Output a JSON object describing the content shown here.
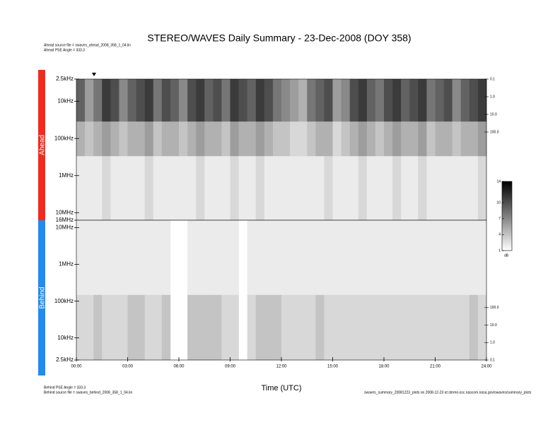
{
  "header": {
    "title": "STEREO/WAVES Daily Summary - 23-Dec-2008 (DOY 358)",
    "lines": [
      "Ahead source file = swaves_ahead_2008_358_1_04.lin",
      "Ahead PSE Angle = 333.3"
    ]
  },
  "footer": {
    "left": [
      "Behind PSE Angle = 333.3",
      "Behind source file = swaves_behind_2008_358_1_04.lin"
    ],
    "right": "swaves_summary_20081223_plots on 2008-12-23 at stereo-ssc.nascom.nasa.gov/swaves/summary_plots"
  },
  "colorbar": {
    "lim": [
      1,
      14
    ],
    "ticks": [
      1,
      4,
      7,
      10,
      14
    ],
    "label": "dB"
  },
  "chart_data": [
    {
      "type": "heatmap",
      "label": "Ahead",
      "color": "#f42a1e",
      "xlim": [
        0,
        24
      ],
      "yscale": "log",
      "ylim": [
        16000000,
        2500
      ],
      "yticks": [
        {
          "value": 2500,
          "label": "2.5kHz"
        },
        {
          "value": 10000,
          "label": "10kHz"
        },
        {
          "value": 100000,
          "label": "100kHz"
        },
        {
          "value": 1000000,
          "label": "1MHz"
        },
        {
          "value": 10000000,
          "label": "10MHz"
        },
        {
          "value": 16000000,
          "label": "16MHz"
        }
      ],
      "y2lim": [
        10000000,
        0.1
      ],
      "y2ticks": [
        0.1,
        {
          "value": 1,
          "label": "1.0"
        },
        {
          "value": 10,
          "label": "10.0"
        },
        {
          "value": 100,
          "label": "100.0"
        }
      ],
      "y_edges": [
        2500,
        35000,
        300000,
        16000000
      ],
      "values": [
        [
          9,
          6,
          8,
          11,
          10,
          7,
          9,
          10,
          11,
          8,
          10,
          9,
          7,
          10,
          11,
          9,
          10,
          8,
          11,
          10,
          9,
          11,
          10,
          8,
          7,
          6,
          5,
          8,
          9,
          10,
          6,
          7,
          10,
          11,
          9,
          8,
          10,
          11,
          9,
          10,
          11,
          8,
          9,
          10,
          7,
          9,
          10,
          11
        ],
        [
          5,
          4,
          5,
          6,
          5,
          4,
          5,
          5,
          6,
          4,
          5,
          5,
          4,
          5,
          6,
          5,
          5,
          4,
          6,
          5,
          5,
          6,
          5,
          4,
          4,
          3,
          3,
          4,
          5,
          5,
          3,
          4,
          5,
          6,
          5,
          4,
          5,
          6,
          5,
          5,
          6,
          4,
          5,
          5,
          4,
          5,
          5,
          6
        ],
        [
          2,
          2,
          2,
          3,
          2,
          2,
          2,
          2,
          3,
          2,
          2,
          2,
          2,
          2,
          3,
          2,
          2,
          2,
          3,
          2,
          2,
          3,
          2,
          2,
          2,
          2,
          2,
          2,
          2,
          3,
          2,
          2,
          2,
          3,
          2,
          2,
          2,
          3,
          2,
          2,
          3,
          2,
          2,
          2,
          2,
          2,
          2,
          3
        ]
      ]
    },
    {
      "type": "heatmap",
      "label": "Behind",
      "color": "#1e8cf0",
      "xlim": [
        0,
        24
      ],
      "yscale": "log",
      "ylim": [
        2500,
        16000000
      ],
      "yticks": [
        {
          "value": 10000000,
          "label": "10MHz"
        },
        {
          "value": 1000000,
          "label": "1MHz"
        },
        {
          "value": 100000,
          "label": "100kHz"
        },
        {
          "value": 10000,
          "label": "10kHz"
        },
        {
          "value": 2500,
          "label": "2.5kHz"
        }
      ],
      "y2lim": [
        0.1,
        10000000
      ],
      "y2ticks": [
        {
          "value": 100,
          "label": "100.0"
        },
        {
          "value": 10,
          "label": "10.0"
        },
        {
          "value": 1,
          "label": "1.0"
        },
        0.1
      ],
      "xlabel": "Time (UTC)",
      "xticks": [
        {
          "value": 0,
          "label": "00:00"
        },
        {
          "value": 3,
          "label": "03:00"
        },
        {
          "value": 6,
          "label": "06:00"
        },
        {
          "value": 9,
          "label": "09:00"
        },
        {
          "value": 12,
          "label": "12:00"
        },
        {
          "value": 15,
          "label": "15:00"
        },
        {
          "value": 18,
          "label": "18:00"
        },
        {
          "value": 21,
          "label": "21:00"
        },
        {
          "value": 24,
          "label": "24:00"
        }
      ],
      "y_edges": [
        2500,
        150000,
        16000000
      ],
      "values": [
        [
          3,
          3,
          4,
          3,
          3,
          3,
          4,
          4,
          3,
          3,
          4,
          null,
          null,
          4,
          4,
          4,
          4,
          3,
          3,
          null,
          3,
          4,
          4,
          4,
          3,
          3,
          3,
          3,
          4,
          3,
          3,
          3,
          3,
          3,
          3,
          3,
          3,
          3,
          3,
          3,
          3,
          3,
          3,
          3,
          3,
          3,
          4,
          3
        ],
        [
          2,
          2,
          2,
          2,
          2,
          2,
          2,
          2,
          2,
          2,
          2,
          null,
          null,
          2,
          2,
          2,
          2,
          2,
          2,
          null,
          2,
          2,
          2,
          2,
          2,
          2,
          2,
          2,
          2,
          2,
          2,
          2,
          2,
          2,
          2,
          2,
          2,
          2,
          2,
          2,
          2,
          2,
          2,
          2,
          2,
          2,
          2,
          2
        ]
      ]
    }
  ]
}
